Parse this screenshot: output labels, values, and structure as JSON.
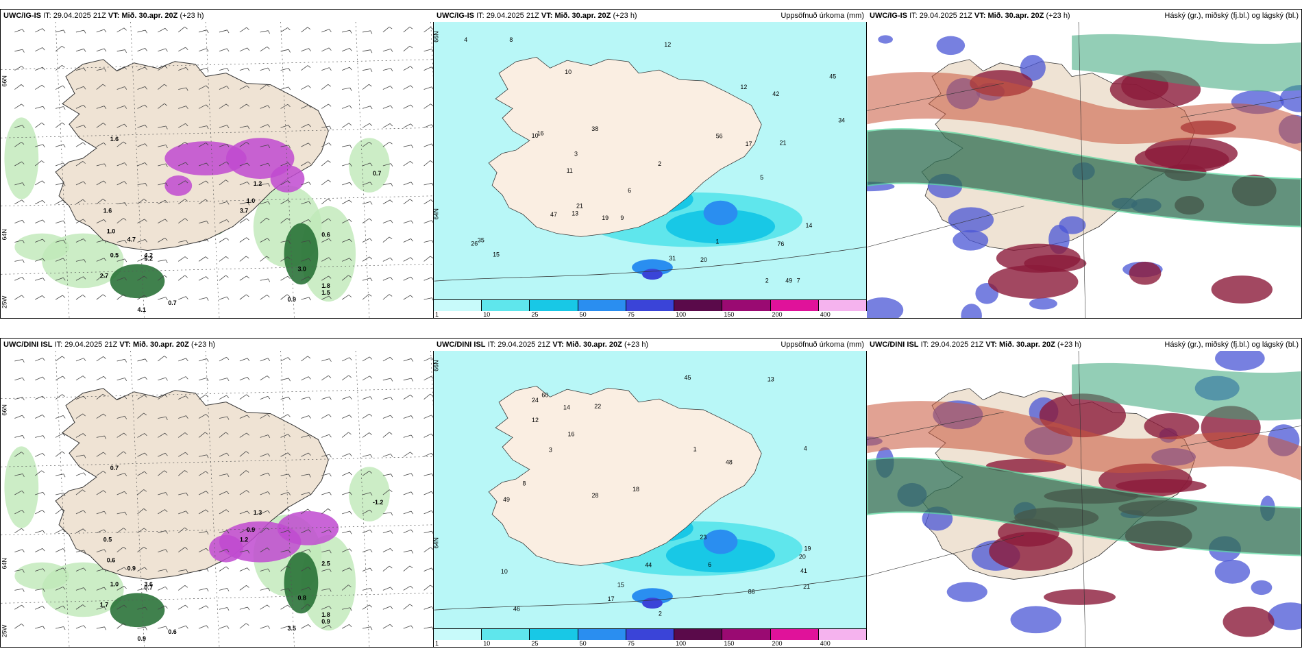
{
  "rows": [
    {
      "model": "UWC/IG-IS",
      "it_label": "IT:",
      "it_value": "29.04.2025 21Z",
      "vt_label": "VT:",
      "vt_value": "Mið. 30.apr. 20Z",
      "lead": "(+23 h)",
      "lat_labels": [
        "66N",
        "64N",
        "25W"
      ],
      "wind_values": [
        "1.6",
        "0.7",
        "1.6",
        "1.0",
        "4.7",
        "0.5",
        "5.2",
        "2.7",
        "4.2",
        "3.7",
        "1.2",
        "1.0",
        "0.6",
        "3.0",
        "1.5",
        "0.7",
        "4.1",
        "1.8",
        "0.9"
      ],
      "precip_values": [
        "6",
        "10",
        "8",
        "5",
        "7",
        "10",
        "9",
        "11",
        "13",
        "17",
        "21",
        "12",
        "4",
        "2",
        "3",
        "1",
        "2",
        "34",
        "45",
        "38",
        "49",
        "16",
        "20",
        "47",
        "76",
        "56",
        "31",
        "35",
        "42",
        "26",
        "21",
        "19",
        "15",
        "14",
        "12"
      ]
    },
    {
      "model": "UWC/DINI ISL",
      "it_label": "IT:",
      "it_value": "29.04.2025 21Z",
      "vt_label": "VT:",
      "vt_value": "Mið. 30.apr. 20Z",
      "lead": "(+23 h)",
      "lat_labels": [
        "66N",
        "64N",
        "25W"
      ],
      "wind_values": [
        "0.7",
        "-1.2",
        "0.5",
        "0.6",
        "0.9",
        "1.0",
        "0.7",
        "1.7",
        "3.6",
        "1.2",
        "1.3",
        "0.9",
        "2.5",
        "0.8",
        "0.9",
        "0.6",
        "0.9",
        "1.8",
        "3.5"
      ],
      "precip_values": [
        "6",
        "8",
        "4",
        "15",
        "21",
        "12",
        "16",
        "13",
        "2",
        "1",
        "3",
        "46",
        "48",
        "45",
        "18",
        "20",
        "49",
        "86",
        "44",
        "60",
        "28",
        "41",
        "24",
        "23",
        "22",
        "17",
        "19",
        "14",
        "10"
      ]
    }
  ],
  "precip_title": "Uppsöfnuð úrkoma (mm)",
  "cloud_title": "Háský (gr.), miðský (fj.bl.) og lágský (bl.)",
  "colorbar": {
    "ticks": [
      "1",
      "10",
      "25",
      "50",
      "75",
      "100",
      "150",
      "200",
      "400"
    ],
    "colors": [
      "#c8fafa",
      "#5fe6ec",
      "#18c8e6",
      "#2a8ef0",
      "#3a44d8",
      "#5a0a4a",
      "#9a0a72",
      "#e0129a",
      "#f5b3ee"
    ]
  },
  "icons": [
    "map-iceland",
    "wind-barbs",
    "colorbar"
  ]
}
